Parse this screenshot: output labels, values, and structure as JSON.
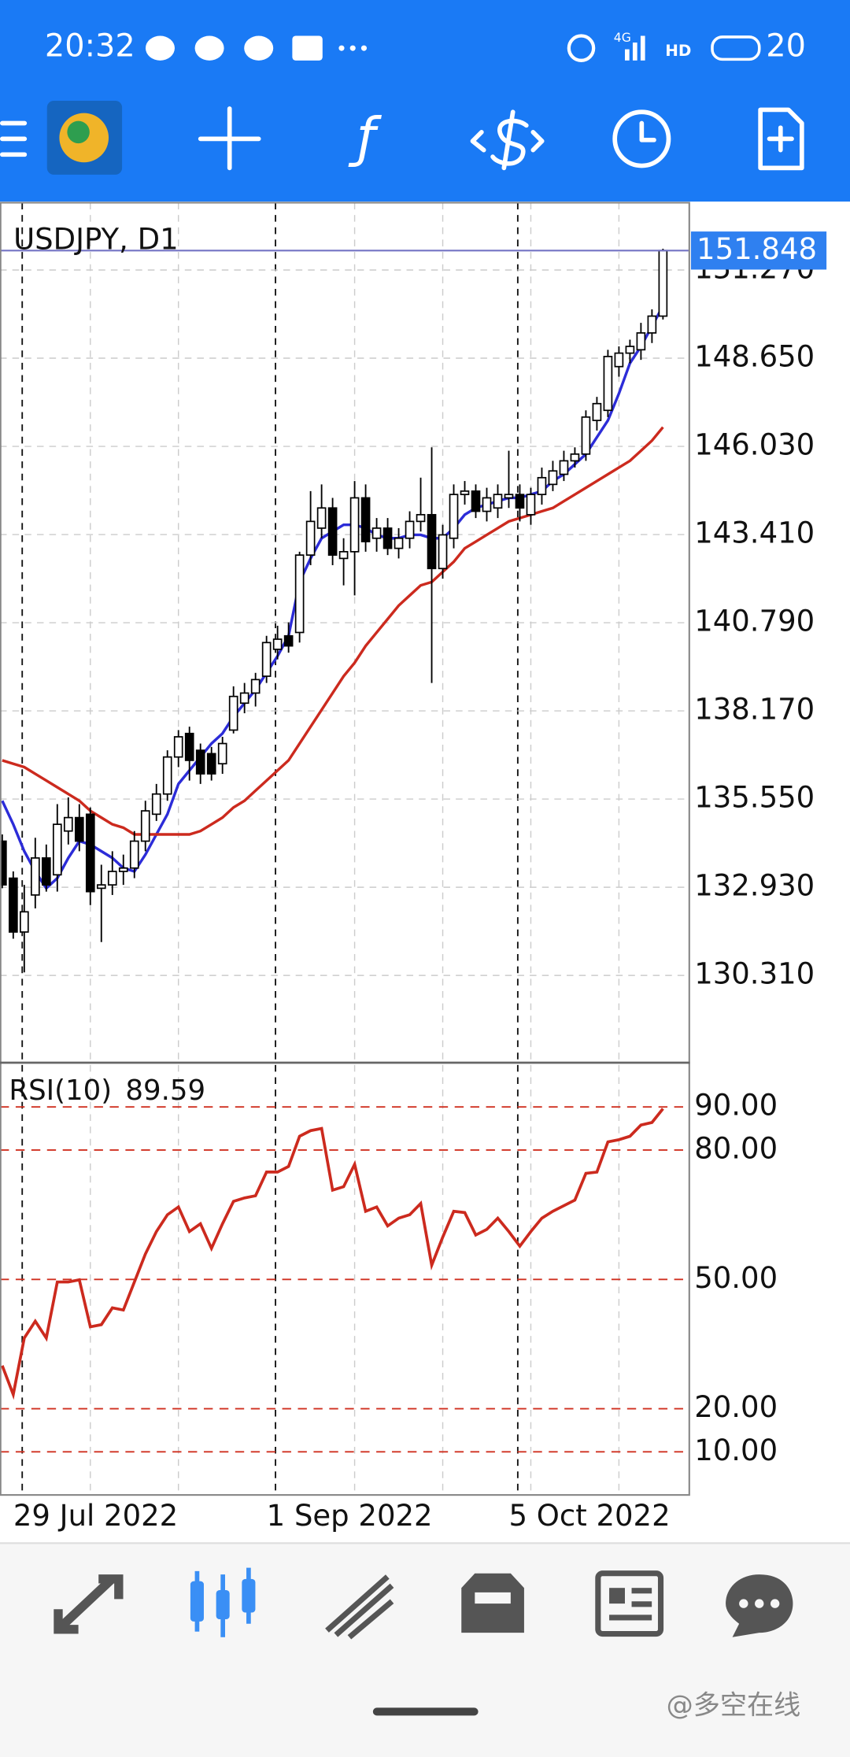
{
  "status_bar": {
    "time": "20:32",
    "network": "4G",
    "hd": "HD",
    "battery": "20"
  },
  "watermark": "@多空在线",
  "chart_data": [
    {
      "type": "candlestick",
      "title": "USDJPY, D1",
      "categories": [
        null,
        "29 Jul 2022",
        null,
        null,
        null,
        null,
        null,
        null,
        null,
        null,
        null,
        null,
        null,
        null,
        null,
        null,
        null,
        null,
        null,
        null,
        null,
        null,
        null,
        null,
        "1 Sep 2022",
        null,
        null,
        null,
        null,
        null,
        null,
        null,
        null,
        null,
        null,
        null,
        null,
        null,
        null,
        null,
        null,
        null,
        null,
        null,
        null,
        null,
        "5 Oct 2022",
        null,
        null,
        null,
        null,
        null,
        null,
        null,
        null,
        null,
        null,
        null,
        null,
        null,
        null
      ],
      "open": [
        134.3,
        133.2,
        131.6,
        132.7,
        133.8,
        133.3,
        134.6,
        135.0,
        135.1,
        132.9,
        133.0,
        133.4,
        133.5,
        134.3,
        135.1,
        135.7,
        136.8,
        137.5,
        137.0,
        136.9,
        136.6,
        137.6,
        138.4,
        138.7,
        139.2,
        140.0,
        140.4,
        140.5,
        142.8,
        143.6,
        144.2,
        142.7,
        142.9,
        144.5,
        143.3,
        143.6,
        143.0,
        143.3,
        143.8,
        144.0,
        142.4,
        143.3,
        144.6,
        144.7,
        144.1,
        144.2,
        144.5,
        144.6,
        144.0,
        144.6,
        144.9,
        145.2,
        145.6,
        145.8,
        146.8,
        147.1,
        148.4,
        148.8,
        148.9,
        149.4,
        149.9
      ],
      "high": [
        134.5,
        133.4,
        133.0,
        134.4,
        134.2,
        135.4,
        135.6,
        135.4,
        135.3,
        133.6,
        134.0,
        133.9,
        134.6,
        135.5,
        136.0,
        137.0,
        137.6,
        137.7,
        137.2,
        137.1,
        137.4,
        138.9,
        139.0,
        139.3,
        140.4,
        140.7,
        140.8,
        142.9,
        144.7,
        144.9,
        144.5,
        143.3,
        145.0,
        144.9,
        143.9,
        143.9,
        143.6,
        144.1,
        145.1,
        146.0,
        143.7,
        144.9,
        145.0,
        144.9,
        144.8,
        144.9,
        145.9,
        144.9,
        144.8,
        145.4,
        145.6,
        145.9,
        146.0,
        147.1,
        147.5,
        148.9,
        149.0,
        149.2,
        149.7,
        150.1,
        151.9
      ],
      "low": [
        132.9,
        131.4,
        130.4,
        132.3,
        132.8,
        132.8,
        134.2,
        134.0,
        132.4,
        131.3,
        132.7,
        133.0,
        133.2,
        134.0,
        134.9,
        135.5,
        136.5,
        136.1,
        136.0,
        136.1,
        136.3,
        137.5,
        138.1,
        138.3,
        139.0,
        139.7,
        139.9,
        140.2,
        142.5,
        143.3,
        142.5,
        141.9,
        141.6,
        142.9,
        142.9,
        142.8,
        142.7,
        143.0,
        143.5,
        139.0,
        142.1,
        143.0,
        144.3,
        143.9,
        143.8,
        143.9,
        144.2,
        143.8,
        143.7,
        144.3,
        144.7,
        145.0,
        145.4,
        145.6,
        146.5,
        146.9,
        148.1,
        148.5,
        148.6,
        149.1,
        149.8
      ],
      "close": [
        133.0,
        131.6,
        132.2,
        133.8,
        133.0,
        134.8,
        135.0,
        134.3,
        132.8,
        133.0,
        133.4,
        133.5,
        134.3,
        135.2,
        135.7,
        136.8,
        137.4,
        136.7,
        136.3,
        136.3,
        137.2,
        138.6,
        138.7,
        139.1,
        140.2,
        140.3,
        140.1,
        142.8,
        143.8,
        144.2,
        142.8,
        142.9,
        144.5,
        143.2,
        143.6,
        143.0,
        143.3,
        143.8,
        144.0,
        142.4,
        143.4,
        144.6,
        144.7,
        144.1,
        144.5,
        144.6,
        144.6,
        144.2,
        144.6,
        145.1,
        145.3,
        145.6,
        145.8,
        146.9,
        147.3,
        148.7,
        148.8,
        149.0,
        149.4,
        149.9,
        151.848
      ],
      "up_color": "#ffffff",
      "down_color": "#000000",
      "overlays": [
        {
          "color": "#2c2cd8",
          "values": [
            135.5,
            134.8,
            134.0,
            133.4,
            132.9,
            133.2,
            133.8,
            134.3,
            134.2,
            134.0,
            133.8,
            133.5,
            133.4,
            133.9,
            134.5,
            135.1,
            136.0,
            136.4,
            136.8,
            137.2,
            137.5,
            138.0,
            138.4,
            138.8,
            139.3,
            139.8,
            140.4,
            142.0,
            142.7,
            143.3,
            143.5,
            143.7,
            143.7,
            143.6,
            143.4,
            143.3,
            143.3,
            143.4,
            143.4,
            143.3,
            143.3,
            143.6,
            144.0,
            144.2,
            144.3,
            144.4,
            144.5,
            144.5,
            144.6,
            144.7,
            145.0,
            145.2,
            145.5,
            145.8,
            146.3,
            146.8,
            147.6,
            148.5,
            149.0,
            149.6,
            150.2
          ]
        },
        {
          "color": "#cc2a1e",
          "values": [
            136.7,
            136.6,
            136.5,
            136.3,
            136.1,
            135.9,
            135.7,
            135.5,
            135.2,
            135.0,
            134.8,
            134.7,
            134.5,
            134.5,
            134.5,
            134.5,
            134.5,
            134.5,
            134.6,
            134.8,
            135.0,
            135.3,
            135.5,
            135.8,
            136.1,
            136.4,
            136.7,
            137.2,
            137.7,
            138.2,
            138.7,
            139.2,
            139.6,
            140.1,
            140.5,
            140.9,
            141.3,
            141.6,
            141.9,
            142.0,
            142.3,
            142.6,
            143.0,
            143.2,
            143.4,
            143.6,
            143.8,
            143.9,
            144.0,
            144.1,
            144.2,
            144.4,
            144.6,
            144.8,
            145.0,
            145.2,
            145.4,
            145.6,
            145.9,
            146.2,
            146.6
          ]
        }
      ],
      "current_price": {
        "value": 151.848,
        "label": "151.848"
      },
      "price_line_color": "#7474c4",
      "price_box_color": "#2f80f0",
      "ylim": [
        127.75,
        153.27
      ],
      "yticks": [
        {
          "value": 130.31,
          "label": "130.310"
        },
        {
          "value": 132.93,
          "label": "132.930"
        },
        {
          "value": 135.55,
          "label": "135.550"
        },
        {
          "value": 138.17,
          "label": "138.170"
        },
        {
          "value": 140.79,
          "label": "140.790"
        },
        {
          "value": 143.41,
          "label": "143.410"
        },
        {
          "value": 146.03,
          "label": "146.030"
        },
        {
          "value": 148.65,
          "label": "148.650"
        },
        {
          "value": 151.27,
          "label": "151.270"
        }
      ],
      "grid": true
    },
    {
      "type": "line",
      "title": "RSI(10)",
      "series": [
        {
          "color": "#cc2a1e",
          "values": [
            30.0,
            23.3,
            36.4,
            40.3,
            36.4,
            49.4,
            49.4,
            49.9,
            39.0,
            39.5,
            43.4,
            42.9,
            49.4,
            55.9,
            61.1,
            65.0,
            66.8,
            61.1,
            62.9,
            57.2,
            62.9,
            68.1,
            68.9,
            69.4,
            74.9,
            74.9,
            76.2,
            83.2,
            84.5,
            85.0,
            70.7,
            71.5,
            76.7,
            65.8,
            66.8,
            62.4,
            64.2,
            65.0,
            67.6,
            53.3,
            59.8,
            65.8,
            65.5,
            60.3,
            61.6,
            64.2,
            61.1,
            57.7,
            61.1,
            64.2,
            65.8,
            67.1,
            68.4,
            74.6,
            74.9,
            81.9,
            82.4,
            83.2,
            85.8,
            86.4,
            89.59
          ]
        }
      ],
      "ylim": [
        0,
        100
      ],
      "yticks": [
        {
          "value": 10,
          "label": "10.00"
        },
        {
          "value": 20,
          "label": "20.00"
        },
        {
          "value": 50,
          "label": "50.00"
        },
        {
          "value": 80,
          "label": "80.00"
        },
        {
          "value": 90,
          "label": "90.00"
        }
      ],
      "level_color": "#d03020"
    }
  ]
}
